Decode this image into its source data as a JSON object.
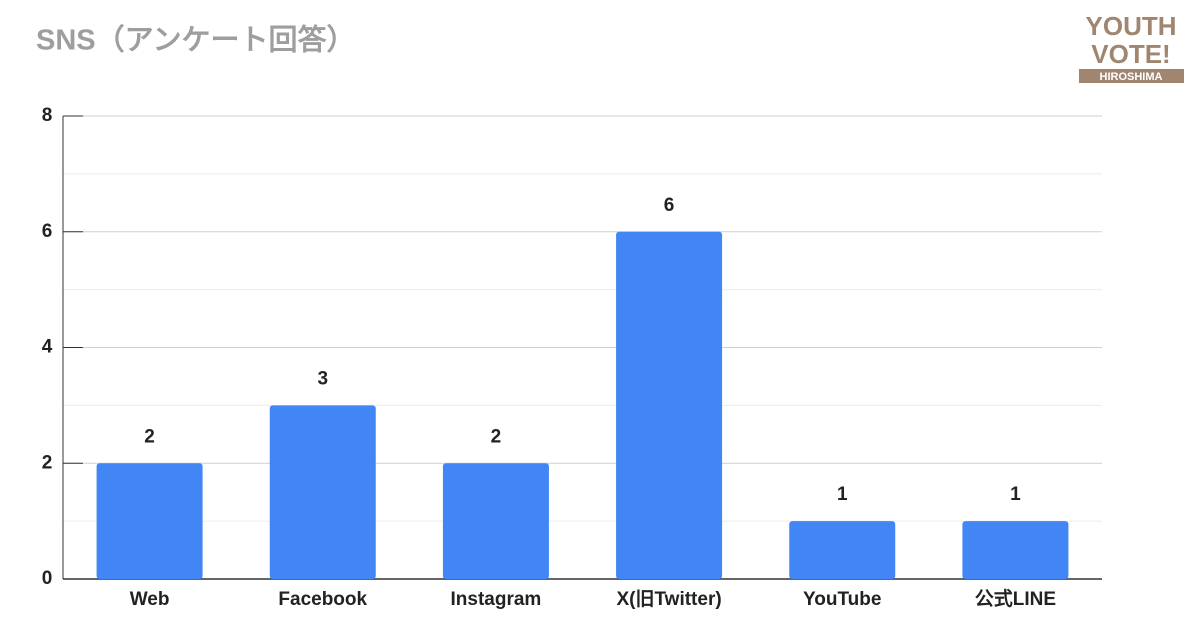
{
  "chart_data": {
    "type": "bar",
    "title": "SNS（アンケート回答）",
    "categories": [
      "Web",
      "Facebook",
      "Instagram",
      "X(旧Twitter)",
      "YouTube",
      "公式LINE"
    ],
    "values": [
      2,
      3,
      2,
      6,
      1,
      1
    ],
    "color": "#4285f4",
    "ylim": [
      0,
      8
    ],
    "yticks": [
      0,
      2,
      4,
      6,
      8
    ],
    "grid": true,
    "minor_grid": true
  },
  "logo": {
    "line1": "YOUTH",
    "line2": "VOTE!",
    "line3": "HIROSHIMA"
  }
}
